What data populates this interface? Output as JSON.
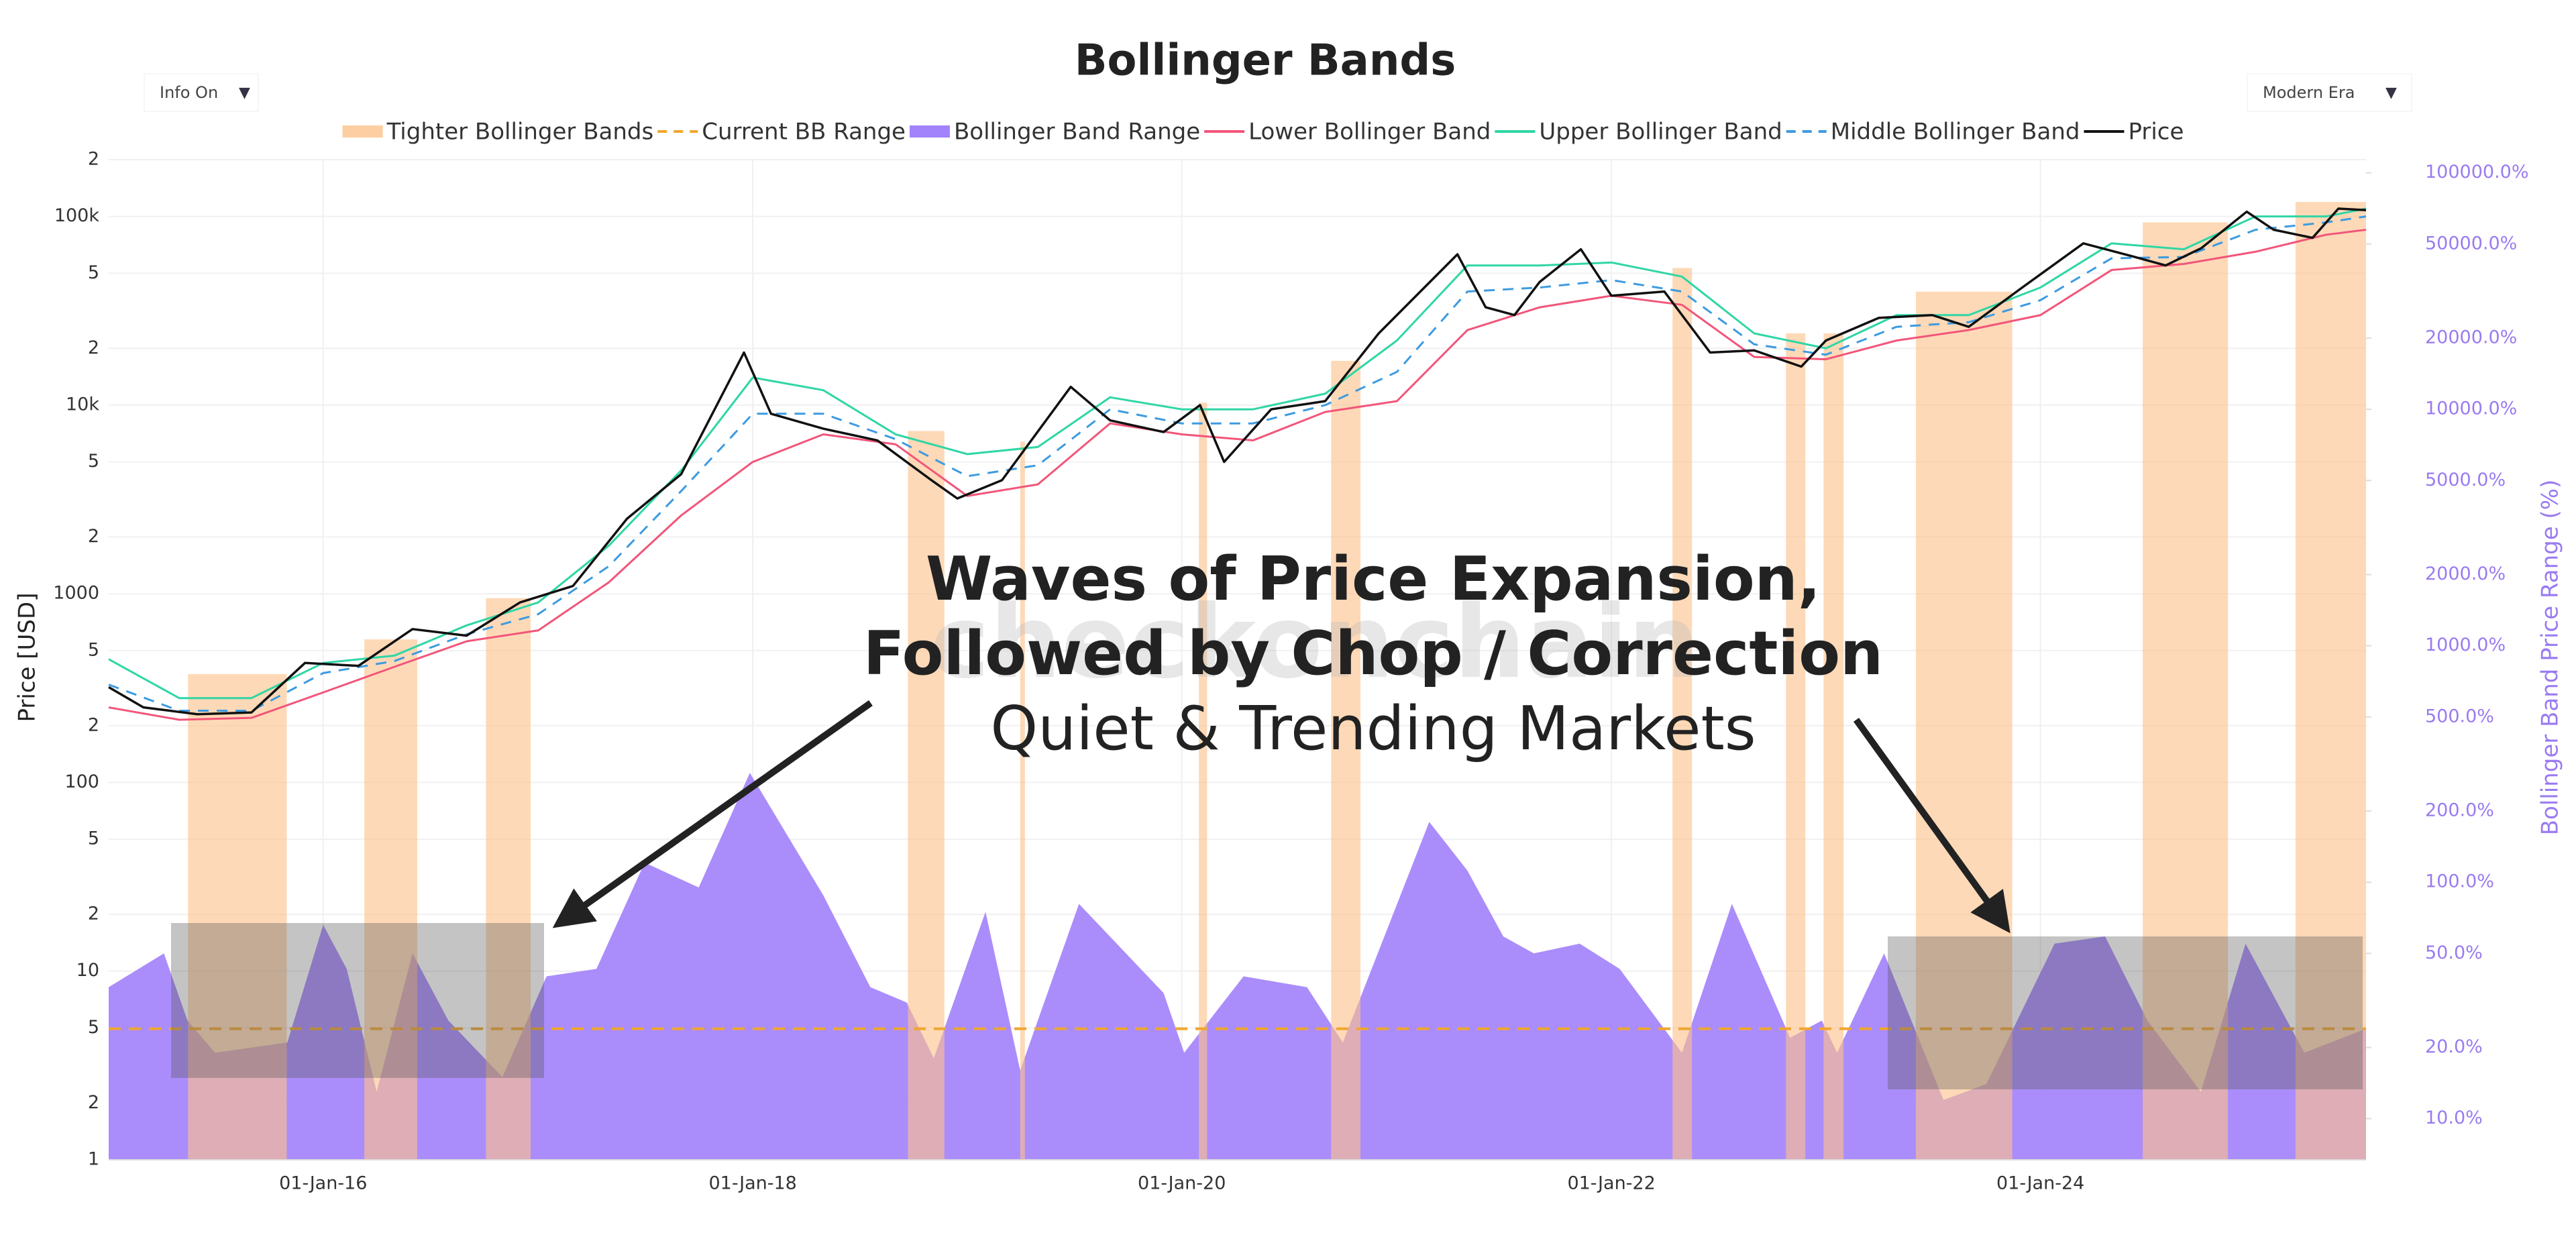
{
  "chart_data": {
    "type": "line",
    "title": "Bollinger Bands",
    "controls": [
      "Info On",
      "Modern Era"
    ],
    "y_label": "Price [USD]",
    "y2_label": "Bollinger Band Price Range (%)",
    "watermark": "checkonchain",
    "annotations": [
      "Waves of Price Expansion,",
      "Followed by Chop / Correction",
      "Quiet & Trending Markets"
    ],
    "log_y": true,
    "log_y2": true,
    "grid": true,
    "legend": "top",
    "xlim": [
      "2015-01-01",
      "2025-07-08"
    ],
    "xticks": [
      {
        "value": "2016-01-01",
        "label": "01-Jan-16"
      },
      {
        "value": "2018-01-01",
        "label": "01-Jan-18"
      },
      {
        "value": "2020-01-01",
        "label": "01-Jan-20"
      },
      {
        "value": "2022-01-01",
        "label": "01-Jan-22"
      },
      {
        "value": "2024-01-01",
        "label": "01-Jan-24"
      }
    ],
    "ylim": [
      1,
      200000
    ],
    "yticks": [
      {
        "value": 200000,
        "label": "2"
      },
      {
        "value": 100000,
        "label": "100k"
      },
      {
        "value": 50000,
        "label": "5"
      },
      {
        "value": 20000,
        "label": "2"
      },
      {
        "value": 10000,
        "label": "10k"
      },
      {
        "value": 5000,
        "label": "5"
      },
      {
        "value": 2000,
        "label": "2"
      },
      1000,
      {
        "value": 500,
        "label": "5"
      },
      {
        "value": 200,
        "label": "2"
      },
      100,
      {
        "value": 50,
        "label": "5"
      },
      {
        "value": 20,
        "label": "2"
      },
      10,
      5,
      2,
      1
    ],
    "y2lim": [
      6.7,
      113700
    ],
    "y2ticks": [
      {
        "value": 100000,
        "label": "100000.0%"
      },
      {
        "value": 50000,
        "label": "50000.0%"
      },
      {
        "value": 20000,
        "label": "20000.0%"
      },
      {
        "value": 10000,
        "label": "10000.0%"
      },
      {
        "value": 5000,
        "label": "5000.0%"
      },
      {
        "value": 2000,
        "label": "2000.0%"
      },
      {
        "value": 1000,
        "label": "1000.0%"
      },
      {
        "value": 500,
        "label": "500.0%"
      },
      {
        "value": 200,
        "label": "200.0%"
      },
      {
        "value": 100,
        "label": "100.0%"
      },
      {
        "value": 50,
        "label": "50.0%"
      },
      {
        "value": 20,
        "label": "20.0%"
      },
      {
        "value": 10,
        "label": "10.0%"
      }
    ],
    "series": [
      {
        "name": "Tighter Bollinger Bands",
        "kind": "range",
        "color": "#fdc28a",
        "ranges": [
          [
            "2015-05-16",
            "2015-10-31"
          ],
          [
            "2016-03-11",
            "2016-06-09"
          ],
          [
            "2016-10-04",
            "2016-12-19"
          ],
          [
            "2018-09-22",
            "2018-11-23"
          ],
          [
            "2019-04-01",
            "2019-04-09"
          ],
          [
            "2020-01-30",
            "2020-02-13"
          ],
          [
            "2020-09-11",
            "2020-10-31"
          ],
          [
            "2022-04-15",
            "2022-05-18"
          ],
          [
            "2022-10-25",
            "2022-11-27"
          ],
          [
            "2022-12-28",
            "2023-01-31"
          ],
          [
            "2023-06-03",
            "2023-11-14"
          ],
          [
            "2024-06-23",
            "2024-11-15"
          ],
          [
            "2025-03-10",
            "2025-07-08"
          ]
        ]
      },
      {
        "name": "Current BB Range",
        "kind": "hline",
        "axis": "y2",
        "color": "#f0a630",
        "dashed": true,
        "value": 24
      },
      {
        "name": "Bollinger Band Range",
        "kind": "area",
        "axis": "y2",
        "color": "#a383fb",
        "x": [
          "2015-01-01",
          "2015-04-05",
          "2015-05-15",
          "2015-07-01",
          "2015-09-01",
          "2015-11-01",
          "2016-01-01",
          "2016-02-10",
          "2016-04-01",
          "2016-06-01",
          "2016-08-01",
          "2016-11-01",
          "2017-01-15",
          "2017-04-10",
          "2017-07-01",
          "2017-10-01",
          "2017-12-27",
          "2018-05-01",
          "2018-07-20",
          "2018-09-20",
          "2018-11-05",
          "2019-02-01",
          "2019-04-01",
          "2019-07-10",
          "2019-12-01",
          "2020-01-05",
          "2020-04-15",
          "2020-08-01",
          "2020-10-01",
          "2021-02-25",
          "2021-05-01",
          "2021-07-01",
          "2021-08-22",
          "2021-11-08",
          "2022-01-15",
          "2022-05-01",
          "2022-07-25",
          "2022-11-01",
          "2022-12-25",
          "2023-01-20",
          "2023-04-10",
          "2023-07-20",
          "2023-10-01",
          "2024-01-25",
          "2024-04-20",
          "2024-07-01",
          "2024-09-30",
          "2024-12-15",
          "2025-03-25",
          "2025-07-08"
        ],
        "values": [
          36,
          50,
          26,
          19,
          20,
          21,
          66,
          43,
          13,
          50,
          26,
          15,
          40,
          43,
          121,
          95,
          290,
          88,
          36,
          31,
          18,
          75,
          16,
          81,
          34,
          19,
          40,
          36,
          21,
          180,
          112,
          59,
          50,
          55,
          43,
          19,
          81,
          22,
          26,
          19,
          50,
          12,
          14,
          55,
          59,
          26,
          13,
          55,
          19,
          24
        ]
      },
      {
        "name": "Lower Bollinger Band",
        "kind": "line",
        "color": "#f2557a",
        "x": [
          "2015-01-01",
          "2015-05-01",
          "2015-09-01",
          "2016-01-01",
          "2016-05-01",
          "2016-09-01",
          "2017-01-01",
          "2017-05-01",
          "2017-09-01",
          "2018-01-01",
          "2018-05-01",
          "2018-09-01",
          "2019-01-01",
          "2019-05-01",
          "2019-09-01",
          "2020-01-01",
          "2020-05-01",
          "2020-09-01",
          "2021-01-01",
          "2021-05-01",
          "2021-09-01",
          "2022-01-01",
          "2022-05-01",
          "2022-09-01",
          "2023-01-01",
          "2023-05-01",
          "2023-09-01",
          "2024-01-01",
          "2024-05-01",
          "2024-09-01",
          "2025-01-01",
          "2025-05-01",
          "2025-07-08"
        ],
        "values": [
          250,
          215,
          220,
          300,
          410,
          560,
          640,
          1150,
          2600,
          5000,
          7000,
          6200,
          3300,
          3800,
          8000,
          7000,
          6500,
          9200,
          10500,
          25000,
          33000,
          38000,
          34000,
          18000,
          17500,
          22000,
          25000,
          30000,
          52000,
          56000,
          65000,
          80000,
          85000
        ]
      },
      {
        "name": "Upper Bollinger Band",
        "kind": "line",
        "color": "#2fd6a5",
        "x": [
          "2015-01-01",
          "2015-05-01",
          "2015-09-01",
          "2016-01-01",
          "2016-05-01",
          "2016-09-01",
          "2017-01-01",
          "2017-05-01",
          "2017-09-01",
          "2018-01-01",
          "2018-05-01",
          "2018-09-01",
          "2019-01-01",
          "2019-05-01",
          "2019-09-01",
          "2020-01-01",
          "2020-05-01",
          "2020-09-01",
          "2021-01-01",
          "2021-05-01",
          "2021-09-01",
          "2022-01-01",
          "2022-05-01",
          "2022-09-01",
          "2023-01-01",
          "2023-05-01",
          "2023-09-01",
          "2024-01-01",
          "2024-05-01",
          "2024-09-01",
          "2025-01-01",
          "2025-05-01",
          "2025-07-08"
        ],
        "values": [
          450,
          280,
          280,
          430,
          470,
          680,
          900,
          1800,
          4500,
          14000,
          12000,
          7000,
          5500,
          6000,
          11000,
          9500,
          9500,
          11500,
          22000,
          55000,
          55000,
          57000,
          48000,
          24000,
          20000,
          30000,
          30000,
          42000,
          72000,
          67000,
          100000,
          100000,
          110000
        ]
      },
      {
        "name": "Middle Bollinger Band",
        "kind": "line",
        "color": "#3d9be0",
        "dashed": true,
        "x": [
          "2015-01-01",
          "2015-05-01",
          "2015-09-01",
          "2016-01-01",
          "2016-05-01",
          "2016-09-01",
          "2017-01-01",
          "2017-05-01",
          "2017-09-01",
          "2018-01-01",
          "2018-05-01",
          "2018-09-01",
          "2019-01-01",
          "2019-05-01",
          "2019-09-01",
          "2020-01-01",
          "2020-05-01",
          "2020-09-01",
          "2021-01-01",
          "2021-05-01",
          "2021-09-01",
          "2022-01-01",
          "2022-05-01",
          "2022-09-01",
          "2023-01-01",
          "2023-05-01",
          "2023-09-01",
          "2024-01-01",
          "2024-05-01",
          "2024-09-01",
          "2025-01-01",
          "2025-05-01",
          "2025-07-08"
        ],
        "values": [
          330,
          240,
          240,
          380,
          440,
          610,
          780,
          1400,
          3500,
          9000,
          9000,
          6600,
          4200,
          4800,
          9500,
          8000,
          8000,
          10000,
          15000,
          40000,
          42000,
          46000,
          40000,
          21000,
          18500,
          26000,
          27500,
          36000,
          60000,
          61000,
          85000,
          93000,
          100000
        ]
      },
      {
        "name": "Price",
        "kind": "line",
        "color": "#111111",
        "x": [
          "2015-01-01",
          "2015-03-01",
          "2015-06-01",
          "2015-09-01",
          "2015-12-01",
          "2016-03-01",
          "2016-06-01",
          "2016-09-01",
          "2016-12-01",
          "2017-03-01",
          "2017-06-01",
          "2017-09-01",
          "2017-12-17",
          "2018-02-01",
          "2018-05-01",
          "2018-08-01",
          "2018-11-01",
          "2018-12-15",
          "2019-03-01",
          "2019-06-26",
          "2019-09-01",
          "2019-12-01",
          "2020-02-01",
          "2020-03-13",
          "2020-06-01",
          "2020-09-01",
          "2020-12-01",
          "2021-04-14",
          "2021-06-01",
          "2021-07-20",
          "2021-09-01",
          "2021-11-10",
          "2022-01-01",
          "2022-04-01",
          "2022-06-18",
          "2022-09-01",
          "2022-11-20",
          "2023-01-01",
          "2023-04-01",
          "2023-07-01",
          "2023-09-01",
          "2023-12-01",
          "2024-03-14",
          "2024-06-01",
          "2024-08-01",
          "2024-10-01",
          "2024-12-17",
          "2025-02-01",
          "2025-04-08",
          "2025-05-22",
          "2025-07-08"
        ],
        "values": [
          320,
          250,
          230,
          235,
          430,
          415,
          650,
          600,
          900,
          1100,
          2500,
          4300,
          19000,
          9000,
          7500,
          6500,
          4000,
          3200,
          4000,
          12500,
          8300,
          7200,
          10000,
          5000,
          9500,
          10500,
          24000,
          63000,
          33000,
          30000,
          45000,
          67000,
          38000,
          40000,
          19000,
          19500,
          16000,
          22000,
          29000,
          30000,
          26000,
          42000,
          72000,
          62000,
          55000,
          68000,
          106000,
          85000,
          77000,
          110000,
          108000
        ]
      }
    ]
  }
}
